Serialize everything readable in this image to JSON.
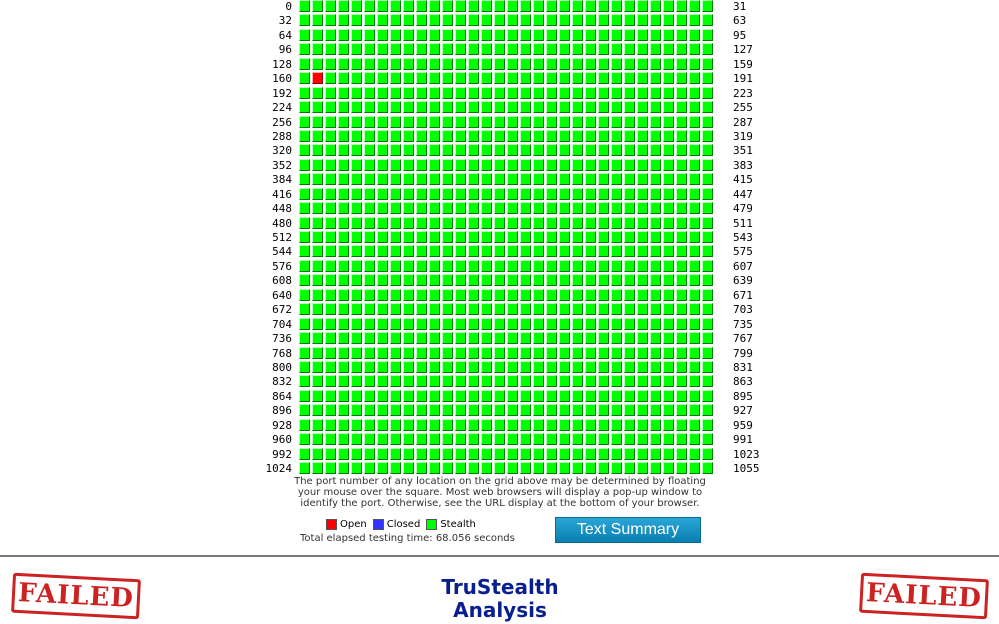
{
  "grid": {
    "row_start_labels": [
      "0",
      "32",
      "64",
      "96",
      "128",
      "160",
      "192",
      "224",
      "256",
      "288",
      "320",
      "352",
      "384",
      "416",
      "448",
      "480",
      "512",
      "544",
      "576",
      "608",
      "640",
      "672",
      "704",
      "736",
      "768",
      "800",
      "832",
      "864",
      "896",
      "928",
      "960",
      "992",
      "1024"
    ],
    "row_end_labels": [
      "31",
      "63",
      "95",
      "127",
      "159",
      "191",
      "223",
      "255",
      "287",
      "319",
      "351",
      "383",
      "415",
      "447",
      "479",
      "511",
      "543",
      "575",
      "607",
      "639",
      "671",
      "703",
      "735",
      "767",
      "799",
      "831",
      "863",
      "895",
      "927",
      "959",
      "991",
      "1023",
      "1055"
    ],
    "ports_per_row": 32,
    "open_ports": [
      161
    ],
    "closed_ports": [],
    "colors": {
      "stealth": "#00ff00",
      "open": "#ff0000",
      "closed": "#3333ff"
    }
  },
  "note": "The port number of any location on the grid above may be determined by floating your mouse over the square. Most web browsers will display a pop-up window to identify the port. Otherwise, see the URL display at the bottom of your browser.",
  "legend": {
    "open": "Open",
    "closed": "Closed",
    "stealth": "Stealth"
  },
  "elapsed": "Total elapsed testing time: 68.056 seconds",
  "summary_button": "Text Summary",
  "result": {
    "left_stamp": "FAILED",
    "right_stamp": "FAILED"
  },
  "title": {
    "line1": "TruStealth",
    "line2": "Analysis"
  }
}
